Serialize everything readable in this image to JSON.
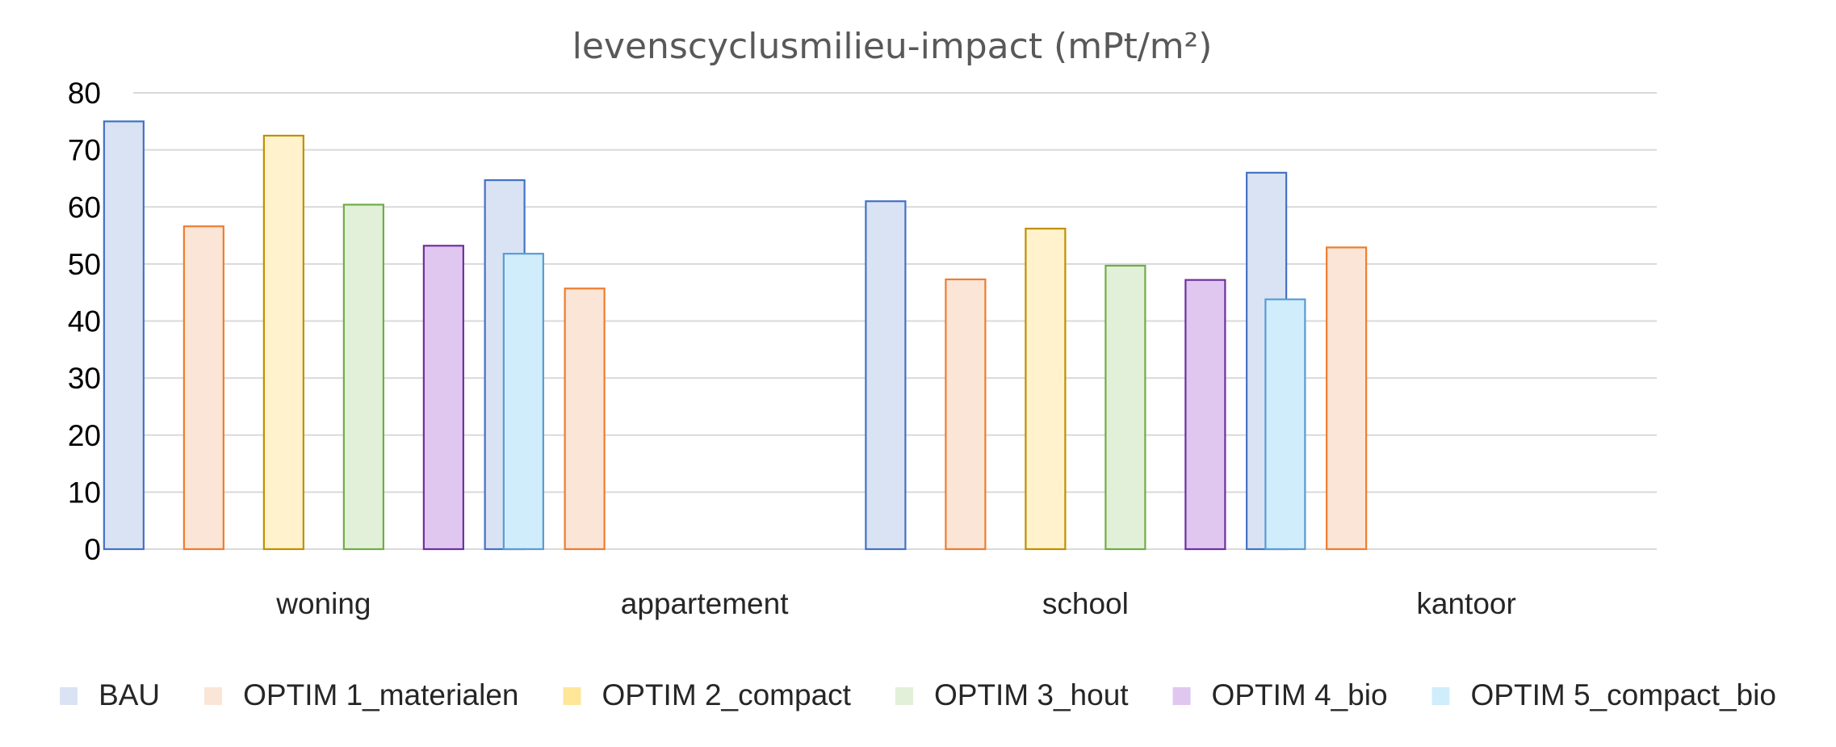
{
  "chart_data": {
    "type": "bar",
    "title": "levenscyclusmilieu-impact (mPt/m²)",
    "xlabel": "",
    "ylabel": "",
    "ylim": [
      0,
      80
    ],
    "yticks": [
      "0",
      "10",
      "20",
      "30",
      "40",
      "50",
      "60",
      "70",
      "80"
    ],
    "grid": true,
    "legend_position": "bottom",
    "categories": [
      "woning",
      "appartement",
      "school",
      "kantoor"
    ],
    "series": [
      {
        "name": "BAU",
        "fill": "#dae3f3",
        "stroke": "#4472c4",
        "values": [
          75,
          64.7,
          61,
          66
        ]
      },
      {
        "name": "OPTIM 1_materialen",
        "fill": "#fbe5d6",
        "stroke": "#ed7d31",
        "values": [
          56.6,
          45.7,
          47.3,
          52.9
        ]
      },
      {
        "name": "OPTIM 2_compact",
        "fill": "#fff2cc",
        "stroke": "#bf9000",
        "values": [
          72.5,
          null,
          56.2,
          null
        ]
      },
      {
        "name": "OPTIM 3_hout",
        "fill": "#e2f0d9",
        "stroke": "#70ad47",
        "values": [
          60.4,
          null,
          49.7,
          null
        ]
      },
      {
        "name": "OPTIM 4_bio",
        "fill": "#e0c7f0",
        "stroke": "#7030a0",
        "values": [
          53.2,
          null,
          47.2,
          null
        ]
      },
      {
        "name": "OPTIM 5_compact_bio",
        "fill": "#d0edfb",
        "stroke": "#5b9bd5",
        "values": [
          51.8,
          null,
          43.8,
          null
        ]
      }
    ],
    "legend_swatch_colors": [
      "#dae3f3",
      "#fbe5d6",
      "#ffe699",
      "#e2f0d9",
      "#e0c7f0",
      "#d0edfb"
    ]
  }
}
